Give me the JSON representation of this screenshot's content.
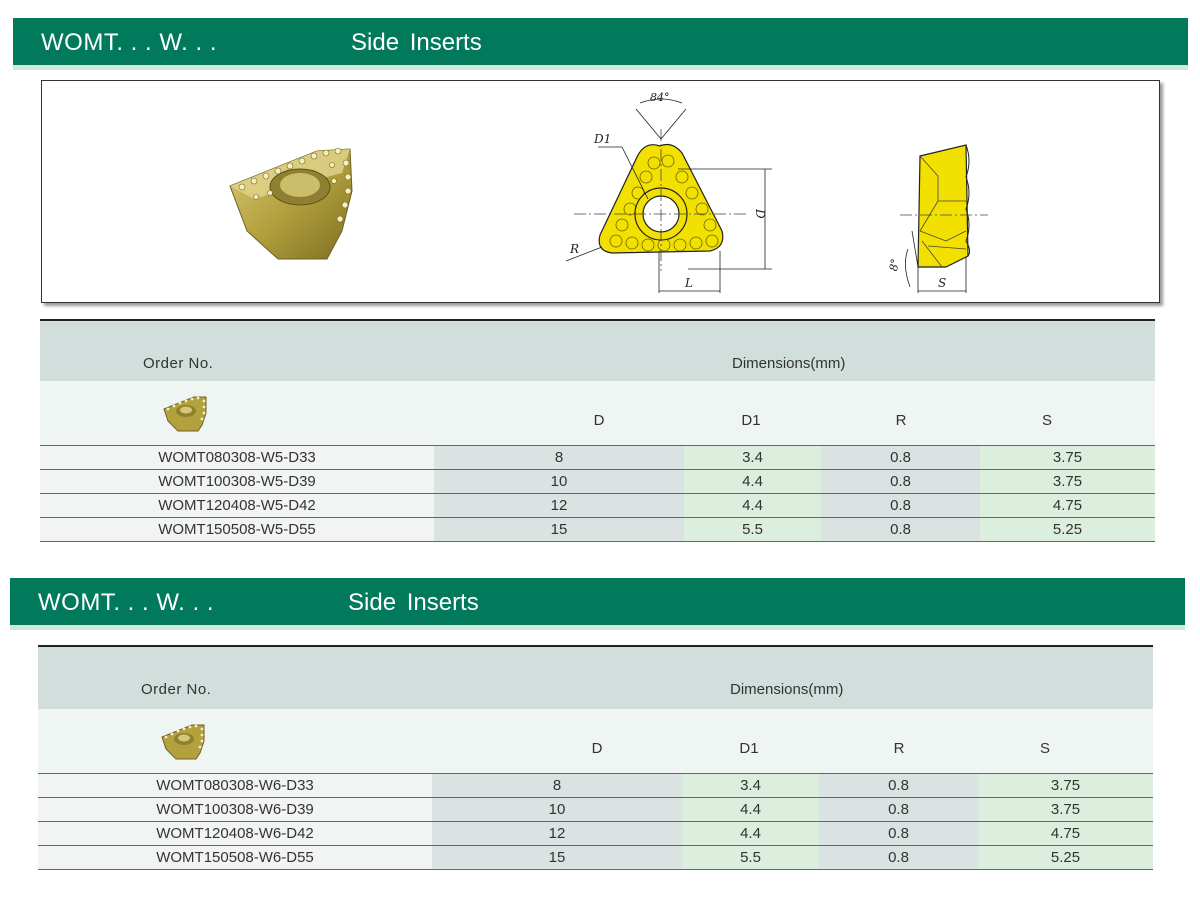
{
  "section1": {
    "banner": {
      "code": "WOMT. . . W. . .",
      "title": "Side  Inserts"
    },
    "drawing": {
      "angle_label": "84°",
      "d1_label": "D1",
      "d_label": "D",
      "r_label": "R",
      "l_label": "L",
      "tilt_label": "8°",
      "s_label": "S"
    },
    "table": {
      "order_label": "Order No.",
      "dims_label": "Dimensions(mm)",
      "columns": [
        "D",
        "D1",
        "R",
        "S"
      ],
      "rows": [
        {
          "order": "WOMT080308-W5-D33",
          "d": "8",
          "d1": "3.4",
          "r": "0.8",
          "s": "3.75"
        },
        {
          "order": "WOMT100308-W5-D39",
          "d": "10",
          "d1": "4.4",
          "r": "0.8",
          "s": "3.75"
        },
        {
          "order": "WOMT120408-W5-D42",
          "d": "12",
          "d1": "4.4",
          "r": "0.8",
          "s": "4.75"
        },
        {
          "order": "WOMT150508-W5-D55",
          "d": "15",
          "d1": "5.5",
          "r": "0.8",
          "s": "5.25"
        }
      ]
    }
  },
  "section2": {
    "banner": {
      "code": "WOMT. . . W. . .",
      "title": "Side  Inserts"
    },
    "table": {
      "order_label": "Order No.",
      "dims_label": "Dimensions(mm)",
      "columns": [
        "D",
        "D1",
        "R",
        "S"
      ],
      "rows": [
        {
          "order": "WOMT080308-W6-D33",
          "d": "8",
          "d1": "3.4",
          "r": "0.8",
          "s": "3.75"
        },
        {
          "order": "WOMT100308-W6-D39",
          "d": "10",
          "d1": "4.4",
          "r": "0.8",
          "s": "3.75"
        },
        {
          "order": "WOMT120408-W6-D42",
          "d": "12",
          "d1": "4.4",
          "r": "0.8",
          "s": "4.75"
        },
        {
          "order": "WOMT150508-W6-D55",
          "d": "15",
          "d1": "5.5",
          "r": "0.8",
          "s": "5.25"
        }
      ]
    }
  },
  "colors": {
    "banner_green": "#007a5a",
    "insert_gold": "#b8a84a",
    "drawing_yellow": "#f2e000"
  }
}
